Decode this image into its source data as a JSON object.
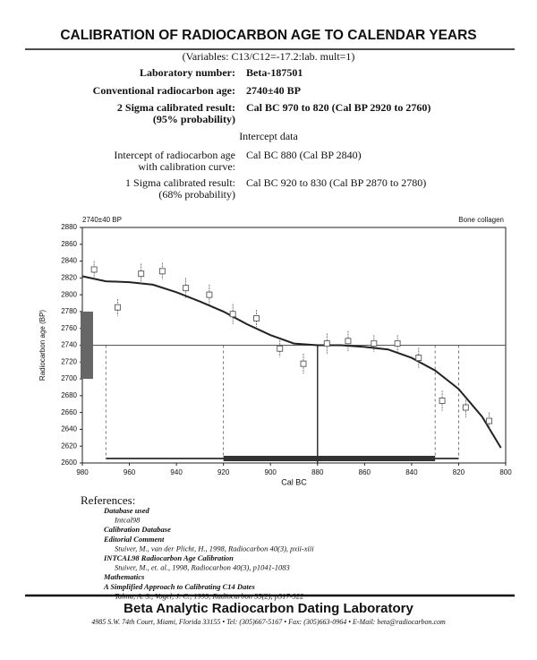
{
  "header": {
    "title": "CALIBRATION OF RADIOCARBON AGE TO CALENDAR YEARS",
    "variables": "(Variables: C13/C12=-17.2:lab. mult=1)"
  },
  "fields": [
    {
      "label": [
        "Laboratory number:"
      ],
      "value": "Beta-187501"
    },
    {
      "label": [
        "Conventional radiocarbon age:"
      ],
      "value": "2740±40 BP"
    },
    {
      "label": [
        "2 Sigma calibrated result:",
        "(95% probability)"
      ],
      "value": "Cal BC 970 to 820 (Cal BP 2920 to 2760)"
    }
  ],
  "intercept_heading": "Intercept data",
  "intercept_fields": [
    {
      "label": [
        "Intercept of radiocarbon age",
        "with calibration curve:"
      ],
      "value": "Cal BC 880 (Cal BP 2840)"
    },
    {
      "label": [
        "1 Sigma calibrated result:",
        "(68% probability)"
      ],
      "value": "Cal BC 920 to 830 (Cal BP 2870 to 2780)"
    }
  ],
  "chart_data": {
    "type": "calibration",
    "corner_left": "2740±40 BP",
    "corner_right": "Bone collagen",
    "x_label": "Cal BC",
    "y_label": "Radiocarbon age (BP)",
    "xlim": [
      980,
      800
    ],
    "xticks": [
      980,
      960,
      940,
      920,
      900,
      880,
      860,
      840,
      820,
      800
    ],
    "ylim": [
      2600,
      2880
    ],
    "yticks": [
      2600,
      2620,
      2640,
      2660,
      2680,
      2700,
      2720,
      2740,
      2760,
      2780,
      2800,
      2820,
      2840,
      2860,
      2880
    ],
    "curve": {
      "color": "#222",
      "x": [
        980,
        970,
        960,
        950,
        940,
        930,
        920,
        910,
        900,
        890,
        880,
        870,
        860,
        850,
        840,
        830,
        820,
        810,
        802
      ],
      "values": [
        2822,
        2816,
        2815,
        2812,
        2803,
        2792,
        2780,
        2765,
        2752,
        2742,
        2740,
        2740,
        2738,
        2735,
        2725,
        2710,
        2688,
        2655,
        2618
      ]
    },
    "points": {
      "color": "#555",
      "x": [
        975,
        965,
        955,
        946,
        936,
        926,
        916,
        906,
        896,
        886,
        876,
        867,
        856,
        846,
        837,
        827,
        817,
        807
      ],
      "values": [
        2830,
        2785,
        2825,
        2828,
        2808,
        2800,
        2777,
        2772,
        2736,
        2718,
        2742,
        2745,
        2742,
        2742,
        2725,
        2674,
        2666,
        2650
      ],
      "errors": [
        10,
        10,
        12,
        10,
        12,
        12,
        12,
        10,
        10,
        12,
        12,
        12,
        10,
        10,
        12,
        12,
        12,
        10
      ]
    },
    "measured_age": 2740,
    "measured_error": 40,
    "sigma2_range": [
      970,
      820
    ],
    "sigma1_range": [
      920,
      830
    ],
    "intercept": 880
  },
  "references": {
    "heading": "References:",
    "lines": [
      {
        "kind": "title",
        "text": "Database used"
      },
      {
        "kind": "citation",
        "text": "Intcal98"
      },
      {
        "kind": "title",
        "text": "Calibration Database"
      },
      {
        "kind": "title",
        "text": "Editorial Comment"
      },
      {
        "kind": "citation",
        "text": "Stuiver, M., van der Plicht, H., 1998, Radiocarbon 40(3), pxii-xiii"
      },
      {
        "kind": "title",
        "text": "INTCAL98 Radiocarbon Age Calibration"
      },
      {
        "kind": "citation",
        "text": "Stuiver, M., et. al., 1998, Radiocarbon 40(3), p1041-1083"
      },
      {
        "kind": "title",
        "text": "Mathematics"
      },
      {
        "kind": "title",
        "text": "A Simplified Approach to Calibrating C14 Dates"
      },
      {
        "kind": "citation",
        "text": "Talma, A. S., Vogel, J. C., 1993, Radiocarbon 35(2), p317-322"
      }
    ]
  },
  "footer": {
    "name": "Beta Analytic Radiocarbon Dating Laboratory",
    "address": "4985 S.W. 74th Court, Miami, Florida 33155 • Tel: (305)667-5167 • Fax: (305)663-0964 • E-Mail: beta@radiocarbon.com"
  }
}
